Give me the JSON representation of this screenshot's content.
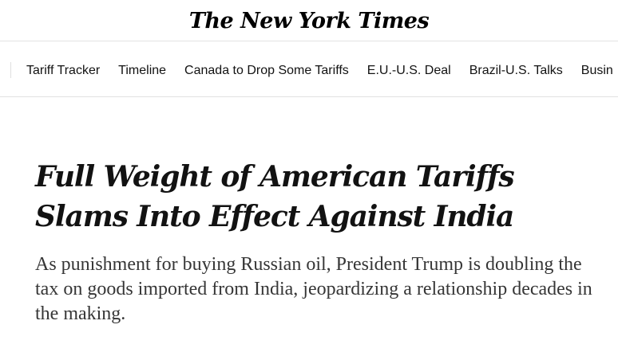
{
  "masthead": {
    "logo_text": "The New York Times"
  },
  "nav": {
    "items": [
      "Tariff Tracker",
      "Timeline",
      "Canada to Drop Some Tariffs",
      "E.U.-U.S. Deal",
      "Brazil-U.S. Talks",
      "Busin"
    ]
  },
  "article": {
    "headline": "Full Weight of American Tariffs Slams Into Effect Against India",
    "summary": "As punishment for buying Russian oil, President Trump is doubling the tax on goods imported from India, jeopardizing a relationship decades in the making."
  }
}
